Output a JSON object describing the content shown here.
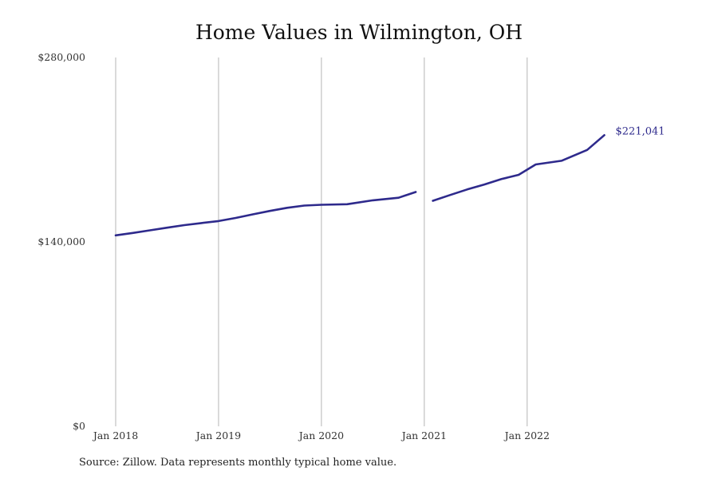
{
  "chart_data": {
    "type": "line",
    "title": "Home Values in Wilmington, OH",
    "source": "Source: Zillow. Data represents monthly typical home value.",
    "xlabel": "",
    "ylabel": "",
    "ylim": [
      0,
      280000
    ],
    "xlim": [
      "2018-01",
      "2022-12"
    ],
    "y_ticks": [
      0,
      140000,
      280000
    ],
    "y_tick_labels": [
      "$0",
      "$140,000",
      "$280,000"
    ],
    "x_ticks": [
      "2018-01",
      "2019-01",
      "2020-01",
      "2021-01",
      "2022-01"
    ],
    "x_tick_labels": [
      "Jan 2018",
      "Jan 2019",
      "Jan 2020",
      "Jan 2021",
      "Jan 2022"
    ],
    "grid": "vertical",
    "line_color": "#2e2a8c",
    "end_label": "$221,041",
    "series": [
      {
        "segments": [
          [
            {
              "x": "2018-01",
              "y": 145000
            },
            {
              "x": "2018-03",
              "y": 146800
            },
            {
              "x": "2018-05",
              "y": 148800
            },
            {
              "x": "2018-07",
              "y": 150800
            },
            {
              "x": "2018-09",
              "y": 152700
            },
            {
              "x": "2018-11",
              "y": 154300
            },
            {
              "x": "2019-01",
              "y": 155800
            },
            {
              "x": "2019-03",
              "y": 158200
            },
            {
              "x": "2019-05",
              "y": 160900
            },
            {
              "x": "2019-07",
              "y": 163500
            },
            {
              "x": "2019-09",
              "y": 165900
            },
            {
              "x": "2019-11",
              "y": 167600
            },
            {
              "x": "2020-01",
              "y": 168200
            },
            {
              "x": "2020-04",
              "y": 168600
            },
            {
              "x": "2020-07",
              "y": 171600
            },
            {
              "x": "2020-10",
              "y": 173500
            },
            {
              "x": "2020-12",
              "y": 177900
            }
          ],
          [
            {
              "x": "2021-02",
              "y": 171200
            },
            {
              "x": "2021-04",
              "y": 175600
            },
            {
              "x": "2021-06",
              "y": 179800
            },
            {
              "x": "2021-08",
              "y": 183600
            },
            {
              "x": "2021-10",
              "y": 187700
            },
            {
              "x": "2021-12",
              "y": 190900
            },
            {
              "x": "2022-02",
              "y": 198800
            },
            {
              "x": "2022-05",
              "y": 201600
            },
            {
              "x": "2022-08",
              "y": 209800
            },
            {
              "x": "2022-10",
              "y": 221041
            }
          ]
        ]
      }
    ]
  }
}
